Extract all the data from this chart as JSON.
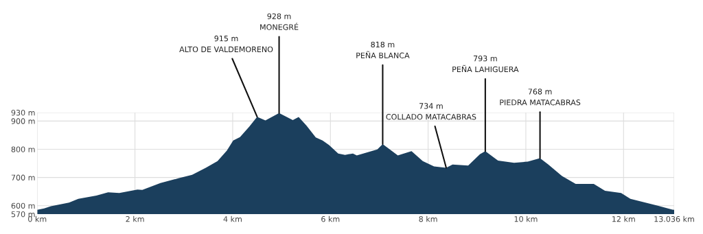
{
  "chart_data": {
    "type": "area",
    "x": [
      0,
      0.14,
      0.28,
      0.65,
      0.84,
      1.21,
      1.45,
      1.68,
      2.05,
      2.15,
      2.52,
      2.89,
      3.17,
      3.45,
      3.69,
      3.88,
      4.01,
      4.15,
      4.34,
      4.5,
      4.67,
      4.95,
      5.23,
      5.35,
      5.51,
      5.7,
      5.84,
      5.97,
      6.16,
      6.3,
      6.46,
      6.54,
      6.96,
      7.07,
      7.38,
      7.66,
      7.89,
      8.12,
      8.37,
      8.5,
      8.82,
      9.06,
      9.17,
      9.43,
      9.76,
      10.04,
      10.29,
      10.46,
      10.74,
      11.02,
      11.39,
      11.62,
      11.95,
      12.14,
      12.42,
      12.7,
      13.0,
      13.036
    ],
    "values": [
      585,
      590,
      598,
      611,
      624,
      636,
      647,
      645,
      657,
      656,
      680,
      697,
      709,
      734,
      758,
      795,
      831,
      843,
      880,
      915,
      902,
      928,
      903,
      914,
      884,
      842,
      831,
      815,
      785,
      780,
      785,
      778,
      799,
      818,
      778,
      793,
      758,
      739,
      734,
      746,
      742,
      782,
      793,
      760,
      752,
      756,
      768,
      746,
      705,
      677,
      677,
      653,
      645,
      624,
      612,
      600,
      586,
      585
    ],
    "color": "#1b3f5d",
    "xlim": [
      0,
      13.036
    ],
    "ylim": [
      570,
      930
    ],
    "xticks": [
      {
        "value": 0,
        "label": "0 km"
      },
      {
        "value": 2,
        "label": "2 km"
      },
      {
        "value": 4,
        "label": "4 km"
      },
      {
        "value": 6,
        "label": "6 km"
      },
      {
        "value": 8,
        "label": "8 km"
      },
      {
        "value": 10,
        "label": "10 km"
      },
      {
        "value": 12,
        "label": "12 km"
      },
      {
        "value": 13.036,
        "label": "13.036 km"
      }
    ],
    "yticks": [
      {
        "value": 570,
        "label": "570 m"
      },
      {
        "value": 600,
        "label": "600 m"
      },
      {
        "value": 700,
        "label": "700 m"
      },
      {
        "value": 800,
        "label": "800 m"
      },
      {
        "value": 900,
        "label": "900 m"
      },
      {
        "value": 930,
        "label": "930 m"
      }
    ],
    "grid": true,
    "annotations": [
      {
        "text": "915 m\nALTO DE VALDEMORENO",
        "x": 4.5,
        "y": 915
      },
      {
        "text": "928 m\nMONEGRÉ",
        "x": 4.95,
        "y": 928
      },
      {
        "text": "818 m\nPEÑA BLANCA",
        "x": 7.07,
        "y": 818
      },
      {
        "text": "734 m\nCOLLADO MATACABRAS",
        "x": 8.37,
        "y": 734
      },
      {
        "text": "793 m\nPEÑA LAHIGUERA",
        "x": 9.17,
        "y": 793
      },
      {
        "text": "768 m\nPIEDRA MATACABRAS",
        "x": 10.29,
        "y": 768
      }
    ]
  }
}
